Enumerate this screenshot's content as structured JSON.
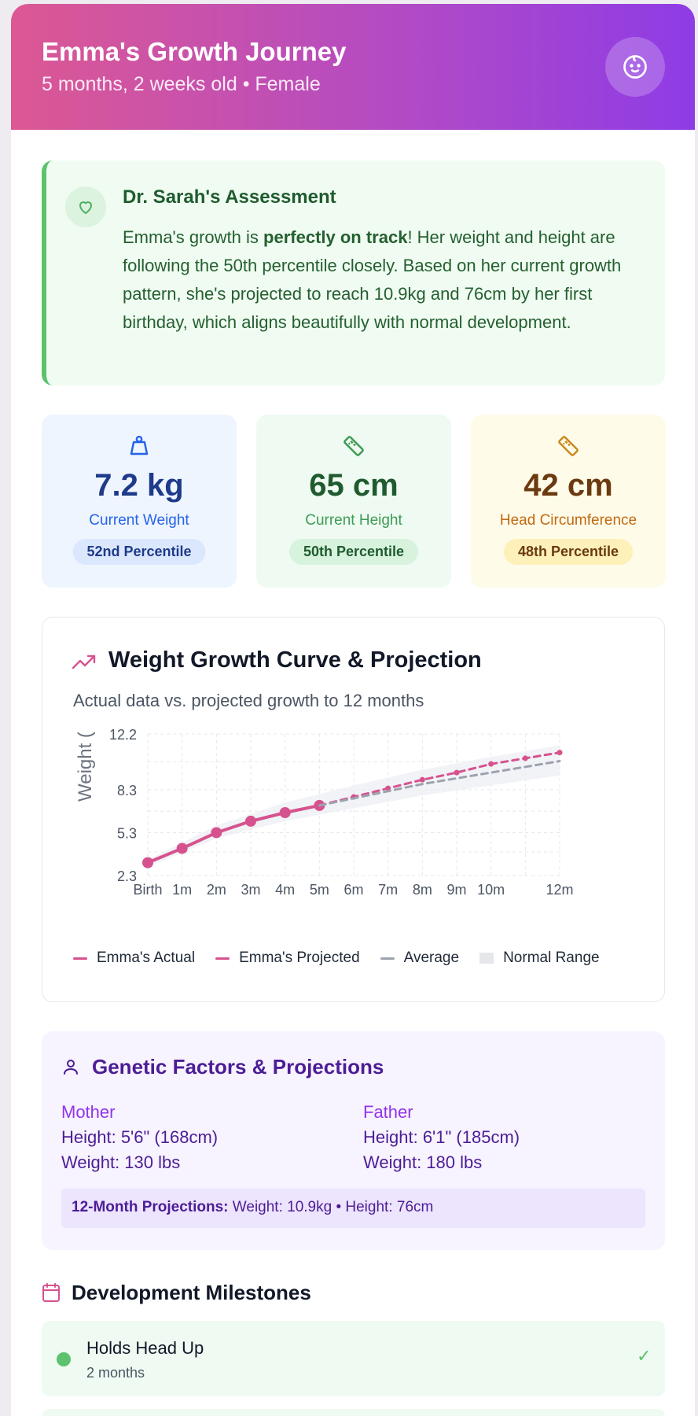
{
  "header": {
    "title": "Emma's Growth Journey",
    "subtitle": "5 months, 2 weeks old • Female",
    "icon": "baby-face-icon"
  },
  "assessment": {
    "title": "Dr. Sarah's Assessment",
    "text_before": "Emma's growth is ",
    "text_bold": "perfectly on track",
    "text_after": "! Her weight and height are following the 50th percentile closely. Based on her current growth pattern, she's projected to reach 10.9kg and 76cm by her first birthday, which aligns beautifully with normal development.",
    "icon": "heart-icon",
    "accent": "#5cc26d"
  },
  "stats": [
    {
      "value": "7.2 kg",
      "label": "Current Weight",
      "percentile": "52nd Percentile",
      "icon": "weight-icon"
    },
    {
      "value": "65 cm",
      "label": "Current Height",
      "percentile": "50th Percentile",
      "icon": "ruler-icon"
    },
    {
      "value": "42 cm",
      "label": "Head Circumference",
      "percentile": "48th Percentile",
      "icon": "ruler-icon"
    }
  ],
  "growth_chart": {
    "title": "Weight Growth Curve & Projection",
    "subtitle": "Actual data vs. projected growth to 12 months",
    "icon": "trending-up-icon",
    "legend": [
      "Emma's Actual",
      "Emma's Projected",
      "Average",
      "Normal Range"
    ]
  },
  "chart_data": {
    "type": "line",
    "ylabel": "Weight (",
    "x": [
      "Birth",
      "1m",
      "2m",
      "3m",
      "4m",
      "5m",
      "6m",
      "7m",
      "8m",
      "9m",
      "10m",
      "12m"
    ],
    "x_months": [
      0,
      1,
      2,
      3,
      4,
      5,
      6,
      7,
      8,
      9,
      10,
      12
    ],
    "ylim": [
      2.3,
      12.2
    ],
    "yticks": [
      "2.3",
      "5.3",
      "8.3",
      "12.2"
    ],
    "series": [
      {
        "name": "Emma's Actual",
        "color": "#d6528f",
        "style": "solid",
        "points": [
          [
            0,
            3.2
          ],
          [
            1,
            4.2
          ],
          [
            2,
            5.3
          ],
          [
            3,
            6.1
          ],
          [
            4,
            6.7
          ],
          [
            5,
            7.2
          ]
        ]
      },
      {
        "name": "Emma's Projected",
        "color": "#d6528f",
        "style": "dashed",
        "points": [
          [
            5,
            7.2
          ],
          [
            6,
            7.8
          ],
          [
            7,
            8.4
          ],
          [
            8,
            9.0
          ],
          [
            9,
            9.5
          ],
          [
            10,
            10.1
          ],
          [
            11,
            10.5
          ],
          [
            12,
            10.9
          ]
        ]
      },
      {
        "name": "Average",
        "color": "#9ca3af",
        "style": "dashed",
        "points": [
          [
            5,
            7.2
          ],
          [
            6,
            7.7
          ],
          [
            7,
            8.2
          ],
          [
            8,
            8.7
          ],
          [
            9,
            9.1
          ],
          [
            10,
            9.5
          ],
          [
            12,
            10.3
          ]
        ]
      }
    ],
    "normal_range": {
      "name": "Normal Range",
      "upper": [
        [
          0,
          3.4
        ],
        [
          2,
          5.8
        ],
        [
          4,
          7.4
        ],
        [
          6,
          8.6
        ],
        [
          8,
          9.7
        ],
        [
          10,
          10.6
        ],
        [
          12,
          11.4
        ]
      ],
      "lower": [
        [
          0,
          2.9
        ],
        [
          2,
          4.9
        ],
        [
          4,
          6.1
        ],
        [
          6,
          7.0
        ],
        [
          8,
          7.9
        ],
        [
          10,
          8.6
        ],
        [
          12,
          9.3
        ]
      ]
    },
    "grid": true,
    "legend_position": "bottom"
  },
  "genetics": {
    "title": "Genetic Factors & Projections",
    "icon": "user-icon",
    "mother": {
      "label": "Mother",
      "height": "Height: 5'6\" (168cm)",
      "weight": "Weight: 130 lbs"
    },
    "father": {
      "label": "Father",
      "height": "Height: 6'1\" (185cm)",
      "weight": "Weight: 180 lbs"
    },
    "projection_label": "12-Month Projections:",
    "projection_text": " Weight: 10.9kg • Height: 76cm"
  },
  "milestones": {
    "title": "Development Milestones",
    "icon": "calendar-icon",
    "items": [
      {
        "name": "Holds Head Up",
        "age": "2 months",
        "status": "✓"
      }
    ]
  }
}
